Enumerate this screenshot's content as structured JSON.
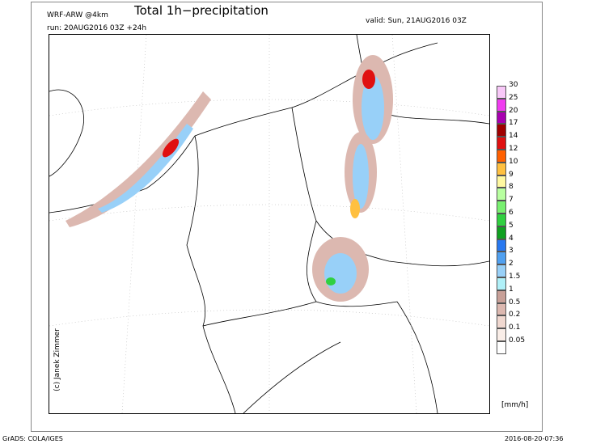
{
  "header": {
    "title": "Total 1h−precipitation",
    "model": "WRF-ARW @4km",
    "run": "run: 20AUG2016 03Z +24h",
    "valid": "valid: Sun, 21AUG2016 03Z"
  },
  "legend": {
    "unit": "[mm/h]",
    "levels": [
      {
        "label": "30",
        "color": "#f8c8f8"
      },
      {
        "label": "25",
        "color": "#f03cf0"
      },
      {
        "label": "20",
        "color": "#a800b0"
      },
      {
        "label": "17",
        "color": "#a00000"
      },
      {
        "label": "14",
        "color": "#e01010"
      },
      {
        "label": "12",
        "color": "#ff6000"
      },
      {
        "label": "10",
        "color": "#ffc040"
      },
      {
        "label": "9",
        "color": "#fff8a0"
      },
      {
        "label": "8",
        "color": "#b8ffa0"
      },
      {
        "label": "7",
        "color": "#78f070"
      },
      {
        "label": "6",
        "color": "#30d040"
      },
      {
        "label": "5",
        "color": "#10a020"
      },
      {
        "label": "4",
        "color": "#2878f0"
      },
      {
        "label": "3",
        "color": "#50a0f0"
      },
      {
        "label": "2",
        "color": "#98d0f8"
      },
      {
        "label": "1.5",
        "color": "#b0f0f8"
      },
      {
        "label": "1",
        "color": "#c8a098"
      },
      {
        "label": "0.5",
        "color": "#dcb8b0"
      },
      {
        "label": "0.2",
        "color": "#f0d8d0"
      },
      {
        "label": "0.1",
        "color": "#faeee8"
      },
      {
        "label": "0.05",
        "color": "#ffffff"
      }
    ]
  },
  "footer": {
    "copyright": "(c) Janek Zimmer",
    "software": "GrADS: COLA/IGES",
    "timestamp": "2016-08-20-07:36"
  }
}
